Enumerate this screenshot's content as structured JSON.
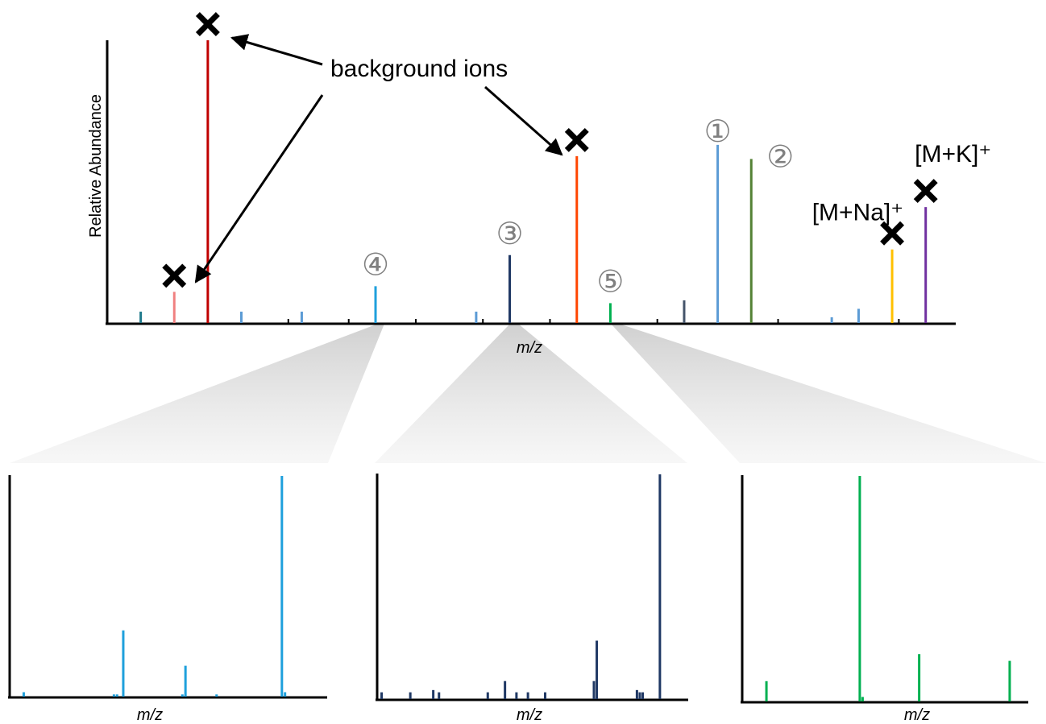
{
  "chart_data": [
    {
      "type": "bar",
      "role": "full spectrum",
      "xlabel": "m/z",
      "ylabel": "Relative Abundance",
      "grid": false,
      "peaks": [
        {
          "x": 5,
          "y": 4,
          "color": "#1f7a8c"
        },
        {
          "x": 10,
          "y": 11,
          "color": "#f08080",
          "note": "background ion",
          "crossed": true
        },
        {
          "x": 15,
          "y": 100,
          "color": "#c00000",
          "note": "background ion",
          "crossed": true
        },
        {
          "x": 20,
          "y": 4,
          "color": "#5b9bd5"
        },
        {
          "x": 29,
          "y": 4,
          "color": "#5b9bd5"
        },
        {
          "x": 40,
          "y": 13,
          "color": "#1fa0dc",
          "label": "④"
        },
        {
          "x": 55,
          "y": 4,
          "color": "#5b9bd5"
        },
        {
          "x": 60,
          "y": 24,
          "color": "#1f3864",
          "label": "③"
        },
        {
          "x": 70,
          "y": 59,
          "color": "#ff4500",
          "note": "background ion",
          "crossed": true
        },
        {
          "x": 75,
          "y": 7,
          "color": "#00b050",
          "label": "⑤"
        },
        {
          "x": 86,
          "y": 8,
          "color": "#44546a"
        },
        {
          "x": 91,
          "y": 63,
          "color": "#5b9bd5",
          "label": "①"
        },
        {
          "x": 96,
          "y": 58,
          "color": "#548235",
          "label": "②"
        },
        {
          "x": 108,
          "y": 2,
          "color": "#5b9bd5"
        },
        {
          "x": 112,
          "y": 5,
          "color": "#5b9bd5"
        },
        {
          "x": 117,
          "y": 26,
          "color": "#ffc000",
          "label": "[M+Na]⁺",
          "crossed": true
        },
        {
          "x": 122,
          "y": 41,
          "color": "#7030a0",
          "label": "[M+K]⁺",
          "crossed": true
        }
      ],
      "xlim": [
        0,
        126
      ],
      "ylim": [
        0,
        100
      ],
      "annotation": "background ions"
    },
    {
      "type": "bar",
      "role": "inset of peak ④",
      "xlabel": "m/z",
      "color": "#1fa0dc",
      "peaks": [
        {
          "x": 4,
          "y": 2
        },
        {
          "x": 33,
          "y": 1
        },
        {
          "x": 34,
          "y": 1
        },
        {
          "x": 36,
          "y": 30
        },
        {
          "x": 55,
          "y": 1
        },
        {
          "x": 56,
          "y": 14
        },
        {
          "x": 66,
          "y": 1
        },
        {
          "x": 87,
          "y": 100
        },
        {
          "x": 88,
          "y": 2
        }
      ],
      "xlim": [
        0,
        100
      ],
      "ylim": [
        0,
        100
      ]
    },
    {
      "type": "bar",
      "role": "inset of peak ③",
      "xlabel": "m/z",
      "color": "#1f3864",
      "peaks": [
        {
          "x": 1,
          "y": 3
        },
        {
          "x": 11,
          "y": 3
        },
        {
          "x": 19,
          "y": 4
        },
        {
          "x": 21,
          "y": 3
        },
        {
          "x": 38,
          "y": 3
        },
        {
          "x": 44,
          "y": 8
        },
        {
          "x": 48,
          "y": 3
        },
        {
          "x": 52,
          "y": 3
        },
        {
          "x": 58,
          "y": 3
        },
        {
          "x": 75,
          "y": 8
        },
        {
          "x": 76,
          "y": 26
        },
        {
          "x": 90,
          "y": 4
        },
        {
          "x": 91,
          "y": 3
        },
        {
          "x": 92,
          "y": 3
        },
        {
          "x": 98,
          "y": 100
        }
      ],
      "xlim": [
        0,
        100
      ],
      "ylim": [
        0,
        100
      ]
    },
    {
      "type": "bar",
      "role": "inset of peak ⑤",
      "xlabel": "m/z",
      "color": "#00b050",
      "peaks": [
        {
          "x": 8,
          "y": 9
        },
        {
          "x": 41,
          "y": 100
        },
        {
          "x": 42,
          "y": 2
        },
        {
          "x": 62,
          "y": 21
        },
        {
          "x": 94,
          "y": 18
        }
      ],
      "xlim": [
        0,
        100
      ],
      "ylim": [
        0,
        100
      ]
    }
  ]
}
